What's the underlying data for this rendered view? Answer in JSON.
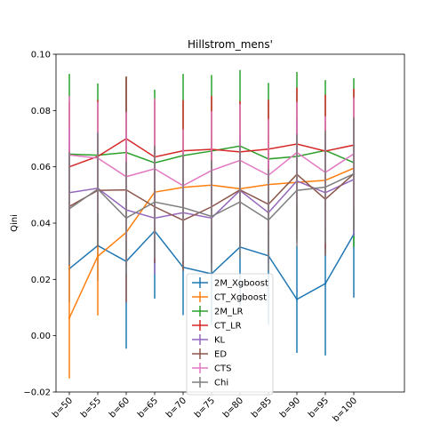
{
  "chart_data": {
    "type": "line",
    "title": "Hillstrom_mens'",
    "xlabel": "",
    "ylabel": "Qini",
    "categories": [
      "b=50",
      "b=55",
      "b=60",
      "b=65",
      "b=70",
      "b=75",
      "b=80",
      "b=85",
      "b=90",
      "b=95",
      "b=100"
    ],
    "ylim": [
      -0.02,
      0.1
    ],
    "yticks": [
      -0.02,
      0.0,
      0.02,
      0.04,
      0.06,
      0.08,
      0.1
    ],
    "ytick_labels": [
      "−0.02",
      "0.00",
      "0.02",
      "0.04",
      "0.06",
      "0.08",
      "0.10"
    ],
    "error_bars": true,
    "grid": false,
    "legend_position": "lower center",
    "series": [
      {
        "name": "2M_Xgboost",
        "color": "#1f77b4",
        "values": [
          0.0238,
          0.032,
          0.0264,
          0.0372,
          0.0243,
          0.022,
          0.0315,
          0.0284,
          0.0129,
          0.0185,
          0.036
        ],
        "errors": [
          0.012,
          0.0125,
          0.031,
          0.024,
          0.017,
          0.018,
          0.021,
          0.0245,
          0.019,
          0.0255,
          0.0225
        ]
      },
      {
        "name": "CT_Xgboost",
        "color": "#ff7f0e",
        "values": [
          0.0063,
          0.0282,
          0.0367,
          0.051,
          0.0527,
          0.0535,
          0.0522,
          0.0537,
          0.0545,
          0.0552,
          0.0595
        ],
        "errors": [
          0.0215,
          0.021,
          0.01,
          0.016,
          0.018,
          0.017,
          0.018,
          0.018,
          0.02,
          0.02,
          0.016
        ]
      },
      {
        "name": "2M_LR",
        "color": "#2ca02c",
        "values": [
          0.0645,
          0.0641,
          0.0651,
          0.0614,
          0.064,
          0.0656,
          0.0674,
          0.0628,
          0.0637,
          0.0658,
          0.0615
        ],
        "errors": [
          0.0285,
          0.0255,
          0.027,
          0.026,
          0.029,
          0.027,
          0.027,
          0.027,
          0.03,
          0.025,
          0.03
        ]
      },
      {
        "name": "CT_LR",
        "color": "#d62728",
        "values": [
          0.06,
          0.0637,
          0.07,
          0.0635,
          0.0657,
          0.0662,
          0.0653,
          0.0663,
          0.0681,
          0.0656,
          0.0677
        ],
        "errors": [
          0.023,
          0.02,
          0.022,
          0.02,
          0.018,
          0.019,
          0.018,
          0.0175,
          0.02,
          0.02,
          0.02
        ]
      },
      {
        "name": "KL",
        "color": "#9467bd",
        "values": [
          0.0508,
          0.0524,
          0.0447,
          0.0418,
          0.0437,
          0.0418,
          0.0516,
          0.0437,
          0.055,
          0.0508,
          0.0555
        ],
        "errors": [
          0.023,
          0.02,
          0.02,
          0.02,
          0.018,
          0.018,
          0.02,
          0.018,
          0.022,
          0.02,
          0.02
        ]
      },
      {
        "name": "ED",
        "color": "#8c564b",
        "values": [
          0.0459,
          0.0516,
          0.0518,
          0.0458,
          0.041,
          0.0458,
          0.0518,
          0.0467,
          0.0573,
          0.0485,
          0.0575
        ],
        "errors": [
          0.021,
          0.02,
          0.04,
          0.02,
          0.018,
          0.02,
          0.02,
          0.019,
          0.02,
          0.02,
          0.02
        ]
      },
      {
        "name": "CTS",
        "color": "#e377c2",
        "values": [
          0.0642,
          0.0631,
          0.0565,
          0.0593,
          0.0533,
          0.0587,
          0.0623,
          0.057,
          0.0651,
          0.058,
          0.0646
        ],
        "errors": [
          0.021,
          0.02,
          0.023,
          0.025,
          0.02,
          0.021,
          0.02,
          0.02,
          0.018,
          0.02,
          0.02
        ]
      },
      {
        "name": "Chi",
        "color": "#7f7f7f",
        "values": [
          0.0451,
          0.0521,
          0.0418,
          0.0475,
          0.0455,
          0.0424,
          0.0475,
          0.0411,
          0.0516,
          0.0528,
          0.0575
        ],
        "errors": [
          0.02,
          0.02,
          0.02,
          0.02,
          0.019,
          0.02,
          0.02,
          0.018,
          0.02,
          0.02,
          0.02
        ]
      }
    ]
  }
}
